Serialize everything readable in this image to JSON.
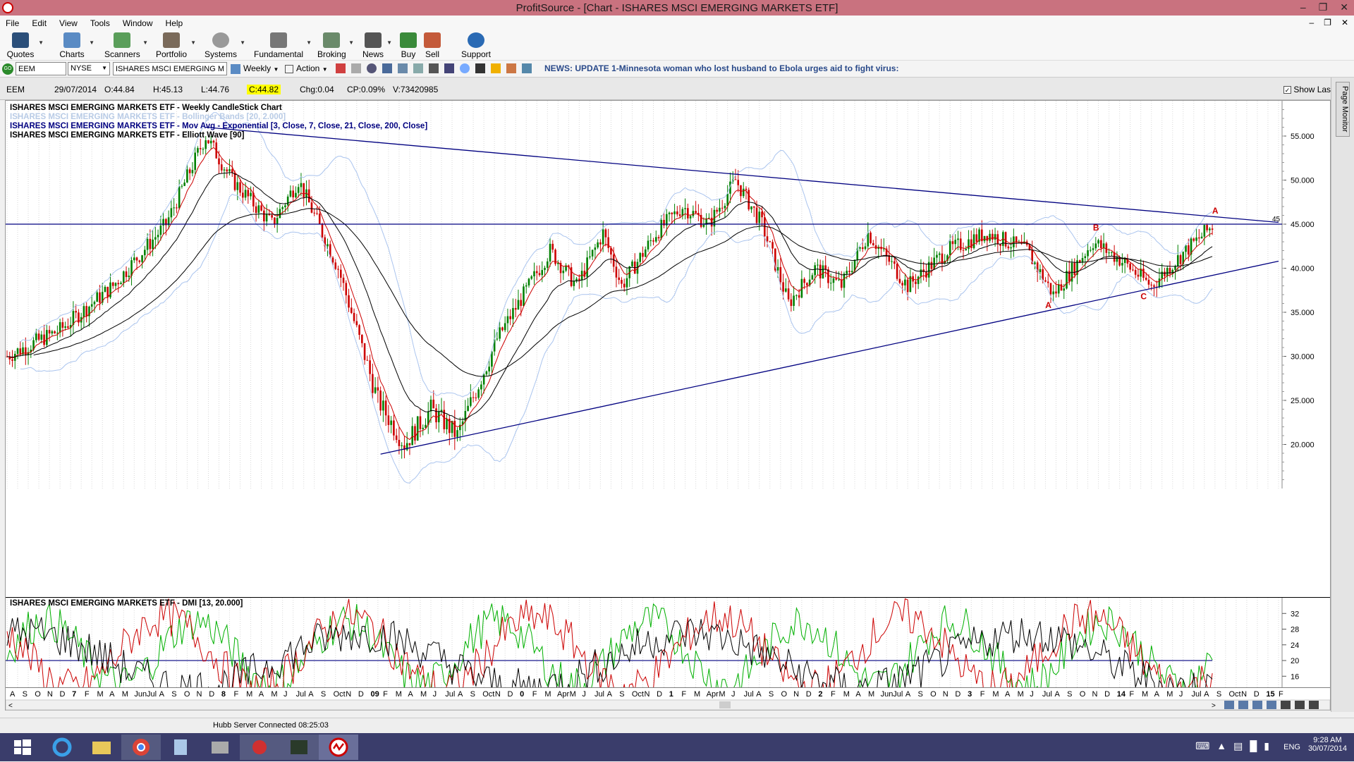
{
  "window": {
    "title": "ProfitSource - [Chart - ISHARES MSCI EMERGING MARKETS ETF]"
  },
  "menu": [
    "File",
    "Edit",
    "View",
    "Tools",
    "Window",
    "Help"
  ],
  "toolbar": [
    {
      "label": "Quotes",
      "icon": "quotes-icon"
    },
    {
      "label": "Charts",
      "icon": "charts-icon"
    },
    {
      "label": "Scanners",
      "icon": "scanners-icon"
    },
    {
      "label": "Portfolio",
      "icon": "portfolio-icon"
    },
    {
      "label": "Systems",
      "icon": "systems-icon"
    },
    {
      "label": "Fundamental",
      "icon": "fundamental-icon"
    },
    {
      "label": "Broking",
      "icon": "broking-icon"
    },
    {
      "label": "News",
      "icon": "news-icon"
    },
    {
      "label": "Buy",
      "icon": "buy-icon"
    },
    {
      "label": "Sell",
      "icon": "sell-icon"
    },
    {
      "label": "Support Center",
      "icon": "help-icon"
    }
  ],
  "symbar": {
    "go": "GO",
    "symbol": "EEM",
    "exchange": "NYSE",
    "name": "ISHARES MSCI EMERGING MARKI",
    "period": "Weekly",
    "action": "Action",
    "news": "NEWS: UPDATE 1-Minnesota woman who lost husband to Ebola urges aid to fight virus:"
  },
  "info": {
    "symbol": "EEM",
    "date": "29/07/2014",
    "open": "O:44.84",
    "high": "H:45.13",
    "low": "L:44.76",
    "close": "C:44.82",
    "chg": "Chg:0.04",
    "cp": "CP:0.09%",
    "volume": "V:73420985",
    "show_last": "Show Last"
  },
  "legend": [
    {
      "text": "ISHARES MSCI EMERGING MARKETS ETF - Weekly CandleStick Chart",
      "color": "#000000"
    },
    {
      "text": "ISHARES MSCI EMERGING MARKETS ETF - Bollinger Bands [20, 2.000]",
      "color": "#b8cbe6"
    },
    {
      "text": "ISHARES MSCI EMERGING MARKETS ETF - Mov Avg - Exponential [3, Close, 7, Close, 21, Close, 200, Close]",
      "color": "#000080"
    },
    {
      "text": "ISHARES MSCI EMERGING MARKETS ETF - Elliott Wave [90]",
      "color": "#000000"
    }
  ],
  "dmi_label": "ISHARES MSCI EMERGING MARKETS ETF - DMI [13, 20.000]",
  "right_tab": "Page Monitor",
  "status": "Hubb Server Connected 08:25:03",
  "clock": {
    "time": "9:28 AM",
    "date": "30/07/2014",
    "lang": "ENG"
  },
  "colors": {
    "up": "#008000",
    "down": "#cc0000",
    "trendline": "#000080",
    "bb": "#aac4ee",
    "ema200": "#000000"
  },
  "chart_data": {
    "type": "candlestick",
    "title": "ISHARES MSCI EMERGING MARKETS ETF - Weekly CandleStick Chart",
    "ylim": [
      15,
      59
    ],
    "yticks": [
      "55.000",
      "50.000",
      "45.000",
      "40.000",
      "35.000",
      "30.000",
      "25.000",
      "20.000"
    ],
    "yvalues": [
      55,
      50,
      45,
      40,
      35,
      30,
      25,
      20
    ],
    "price_path": [
      [
        0,
        30
      ],
      [
        20,
        33
      ],
      [
        40,
        38
      ],
      [
        60,
        45
      ],
      [
        75,
        55
      ],
      [
        85,
        50
      ],
      [
        100,
        45
      ],
      [
        110,
        50
      ],
      [
        125,
        40
      ],
      [
        140,
        25
      ],
      [
        150,
        20
      ],
      [
        160,
        24
      ],
      [
        170,
        21
      ],
      [
        185,
        32
      ],
      [
        205,
        42
      ],
      [
        215,
        38
      ],
      [
        225,
        44
      ],
      [
        232,
        38
      ],
      [
        245,
        44
      ],
      [
        255,
        47
      ],
      [
        265,
        45
      ],
      [
        275,
        50
      ],
      [
        285,
        45
      ],
      [
        295,
        36
      ],
      [
        305,
        40
      ],
      [
        315,
        38
      ],
      [
        325,
        44
      ],
      [
        340,
        38
      ],
      [
        355,
        42
      ],
      [
        370,
        44
      ],
      [
        385,
        42
      ],
      [
        395,
        37
      ],
      [
        410,
        43
      ],
      [
        420,
        41
      ],
      [
        432,
        38
      ],
      [
        445,
        42
      ],
      [
        455,
        44.8
      ]
    ],
    "trendline_upper": {
      "from": [
        75,
        56
      ],
      "to": [
        480,
        45.2
      ]
    },
    "trendline_lower": {
      "from": [
        141,
        18.9
      ],
      "to": [
        480,
        40.8
      ]
    },
    "horizontal_line": {
      "value": 45,
      "label": "45"
    },
    "elliott_labels": [
      {
        "text": "A",
        "x": 393,
        "y": 35.5
      },
      {
        "text": "B",
        "x": 411,
        "y": 44.3
      },
      {
        "text": "C",
        "x": 429,
        "y": 36.5
      },
      {
        "text": "A",
        "x": 456,
        "y": 46.2
      }
    ],
    "dmi_yticks": [
      "32",
      "28",
      "24",
      "20",
      "16"
    ],
    "dmi_yvalues": [
      32,
      28,
      24,
      20,
      16
    ],
    "dmi_threshold": 20,
    "xticks": [
      "A",
      "S",
      "O",
      "N",
      "D",
      "7",
      "F",
      "M",
      "A",
      "M",
      "Jun",
      "Jul",
      "A",
      "S",
      "O",
      "N",
      "D",
      "8",
      "F",
      "M",
      "A",
      "M",
      "J",
      "Jul",
      "A",
      "S",
      "Oct",
      "N",
      "D",
      "09",
      "F",
      "M",
      "A",
      "M",
      "J",
      "Jul",
      "A",
      "S",
      "Oct",
      "N",
      "D",
      "0",
      "F",
      "M",
      "Apr",
      "M",
      "J",
      "Jul",
      "A",
      "S",
      "Oct",
      "N",
      "D",
      "1",
      "F",
      "M",
      "Apr",
      "M",
      "J",
      "Jul",
      "A",
      "S",
      "O",
      "N",
      "D",
      "2",
      "F",
      "M",
      "A",
      "M",
      "Jun",
      "Jul",
      "A",
      "S",
      "O",
      "N",
      "D",
      "3",
      "F",
      "M",
      "A",
      "M",
      "J",
      "Jul",
      "A",
      "S",
      "O",
      "N",
      "D",
      "14",
      "F",
      "M",
      "A",
      "M",
      "J",
      "Jul",
      "A",
      "S",
      "Oct",
      "N",
      "D",
      "15",
      "F"
    ]
  }
}
